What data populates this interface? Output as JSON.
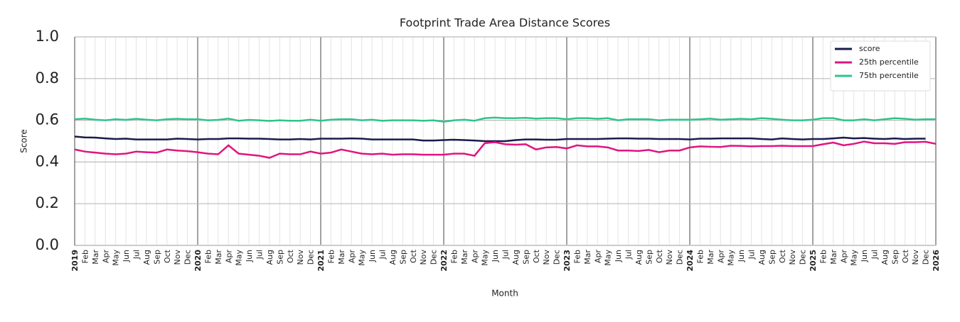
{
  "chart_data": {
    "type": "line",
    "title": "Footprint Trade Area Distance Scores",
    "x_label": "Month",
    "y_label": "Score",
    "categories": [
      "2019",
      "Feb",
      "Mar",
      "Apr",
      "May",
      "Jun",
      "Jul",
      "Aug",
      "Sep",
      "Oct",
      "Nov",
      "Dec",
      "2020",
      "Feb",
      "Mar",
      "Apr",
      "May",
      "Jun",
      "Jul",
      "Aug",
      "Sep",
      "Oct",
      "Nov",
      "Dec",
      "2021",
      "Feb",
      "Mar",
      "Apr",
      "May",
      "Jun",
      "Jul",
      "Aug",
      "Sep",
      "Oct",
      "Nov",
      "Dec",
      "2022",
      "Feb",
      "Mar",
      "Apr",
      "May",
      "Jun",
      "Jul",
      "Aug",
      "Sep",
      "Oct",
      "Nov",
      "Dec",
      "2023",
      "Feb",
      "Mar",
      "Apr",
      "May",
      "Jun",
      "Jul",
      "Aug",
      "Sep",
      "Oct",
      "Nov",
      "Dec",
      "2024",
      "Feb",
      "Mar",
      "Apr",
      "May",
      "Jun",
      "Jul",
      "Aug",
      "Sep",
      "Oct",
      "Nov",
      "Dec",
      "2025",
      "Feb",
      "Mar",
      "Apr",
      "May",
      "Jun",
      "Jul",
      "Aug",
      "Sep",
      "Oct",
      "Nov",
      "Dec",
      "2026"
    ],
    "series": [
      {
        "name": "score",
        "color": "#1a1a4e",
        "values": [
          0.522,
          0.518,
          0.517,
          0.513,
          0.51,
          0.512,
          0.508,
          0.508,
          0.508,
          0.508,
          0.512,
          0.51,
          0.508,
          0.51,
          0.51,
          0.513,
          0.513,
          0.512,
          0.512,
          0.51,
          0.508,
          0.508,
          0.51,
          0.508,
          0.512,
          0.512,
          0.512,
          0.513,
          0.512,
          0.508,
          0.508,
          0.508,
          0.508,
          0.508,
          0.503,
          0.503,
          0.505,
          0.507,
          0.505,
          0.503,
          0.5,
          0.5,
          0.5,
          0.505,
          0.508,
          0.508,
          0.507,
          0.507,
          0.51,
          0.51,
          0.51,
          0.51,
          0.512,
          0.513,
          0.513,
          0.512,
          0.512,
          0.51,
          0.51,
          0.51,
          0.508,
          0.512,
          0.512,
          0.513,
          0.513,
          0.513,
          0.513,
          0.51,
          0.508,
          0.513,
          0.51,
          0.508,
          0.51,
          0.51,
          0.513,
          0.517,
          0.513,
          0.515,
          0.512,
          0.51,
          0.513,
          0.51,
          0.512,
          0.512,
          null
        ]
      },
      {
        "name": "25th percentile",
        "color": "#e0157f",
        "values": [
          0.46,
          0.45,
          0.445,
          0.44,
          0.437,
          0.44,
          0.45,
          0.447,
          0.445,
          0.46,
          0.455,
          0.452,
          0.447,
          0.44,
          0.437,
          0.48,
          0.44,
          0.435,
          0.43,
          0.42,
          0.44,
          0.437,
          0.437,
          0.45,
          0.44,
          0.445,
          0.46,
          0.45,
          0.44,
          0.437,
          0.44,
          0.435,
          0.437,
          0.437,
          0.435,
          0.435,
          0.435,
          0.44,
          0.44,
          0.43,
          0.49,
          0.495,
          0.485,
          0.483,
          0.485,
          0.46,
          0.47,
          0.472,
          0.465,
          0.48,
          0.475,
          0.475,
          0.47,
          0.455,
          0.455,
          0.453,
          0.458,
          0.447,
          0.455,
          0.455,
          0.47,
          0.475,
          0.473,
          0.472,
          0.478,
          0.477,
          0.475,
          0.476,
          0.476,
          0.478,
          0.476,
          0.476,
          0.476,
          0.485,
          0.493,
          0.48,
          0.487,
          0.498,
          0.49,
          0.49,
          0.487,
          0.495,
          0.495,
          0.497,
          0.487
        ]
      },
      {
        "name": "75th percentile",
        "color": "#2ec48a",
        "values": [
          0.605,
          0.608,
          0.603,
          0.6,
          0.605,
          0.602,
          0.607,
          0.603,
          0.6,
          0.605,
          0.607,
          0.605,
          0.605,
          0.6,
          0.602,
          0.608,
          0.598,
          0.602,
          0.6,
          0.597,
          0.6,
          0.598,
          0.598,
          0.603,
          0.598,
          0.603,
          0.605,
          0.605,
          0.6,
          0.603,
          0.598,
          0.6,
          0.6,
          0.6,
          0.598,
          0.6,
          0.593,
          0.6,
          0.603,
          0.598,
          0.61,
          0.613,
          0.61,
          0.61,
          0.612,
          0.608,
          0.61,
          0.61,
          0.605,
          0.61,
          0.61,
          0.607,
          0.61,
          0.6,
          0.605,
          0.605,
          0.605,
          0.6,
          0.603,
          0.603,
          0.603,
          0.605,
          0.608,
          0.603,
          0.605,
          0.607,
          0.605,
          0.61,
          0.607,
          0.603,
          0.6,
          0.6,
          0.603,
          0.61,
          0.61,
          0.6,
          0.6,
          0.605,
          0.6,
          0.605,
          0.61,
          0.607,
          0.603,
          0.605,
          0.605
        ]
      }
    ],
    "ylim": [
      0,
      1
    ],
    "yticks": [
      {
        "value": 0,
        "label": "0.0"
      },
      0.2,
      0.4,
      0.6,
      0.8,
      {
        "value": 1,
        "label": "1.0"
      }
    ],
    "grid": true,
    "legend": "upper right"
  }
}
